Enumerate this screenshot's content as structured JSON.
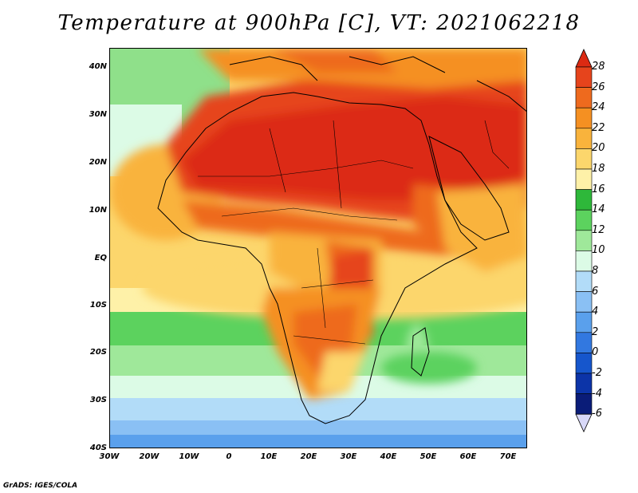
{
  "title": "Temperature at 900hPa [C], VT: 2021062218",
  "map": {
    "lat_labels": [
      "40N",
      "30N",
      "20N",
      "10N",
      "EQ",
      "10S",
      "20S",
      "30S",
      "40S"
    ],
    "lon_labels": [
      "30W",
      "20W",
      "10W",
      "0",
      "10E",
      "20E",
      "30E",
      "40E",
      "50E",
      "60E",
      "70E"
    ],
    "lat_range": [
      -40,
      44
    ],
    "lon_range": [
      -30,
      75
    ]
  },
  "colorbar": {
    "labels": [
      "28",
      "26",
      "24",
      "22",
      "20",
      "18",
      "16",
      "14",
      "12",
      "10",
      "8",
      "6",
      "4",
      "2",
      "0",
      "-2",
      "-4",
      "-6"
    ],
    "colors": [
      "#dc2a12",
      "#e6441c",
      "#ee6a1e",
      "#f59022",
      "#f9b33c",
      "#fcd66c",
      "#fef1a8",
      "#2eb83a",
      "#5cd25e",
      "#9fe89a",
      "#dcfbe6",
      "#b2dcf8",
      "#8ac0f4",
      "#5aa0ec",
      "#3278e0",
      "#1656cc",
      "#0c34a8",
      "#0a1c78",
      "#d8d8f8"
    ]
  },
  "footer": "GrADS: IGES/COLA"
}
